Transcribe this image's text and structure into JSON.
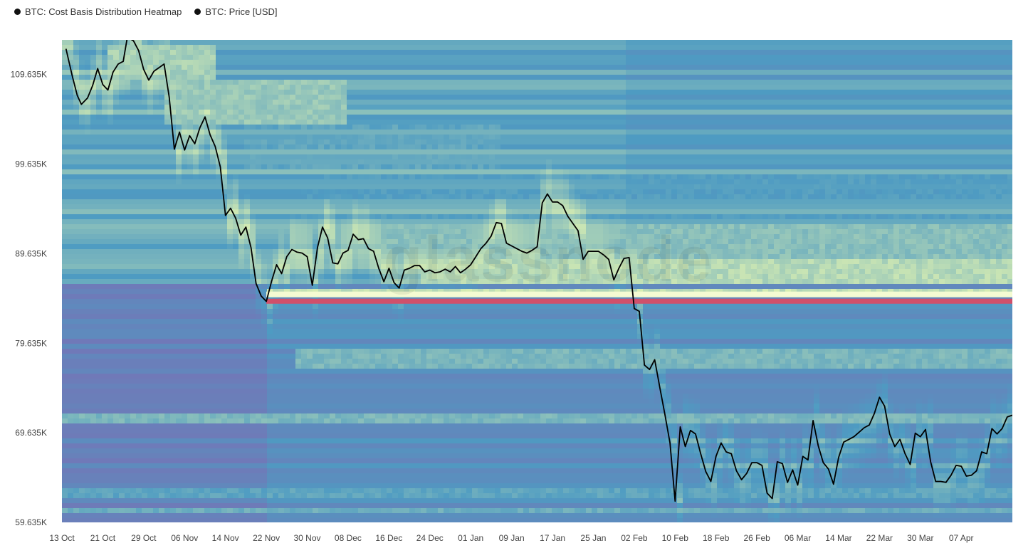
{
  "legend": {
    "items": [
      {
        "label": "BTC: Cost Basis Distribution Heatmap",
        "color": "#111111"
      },
      {
        "label": "BTC: Price [USD]",
        "color": "#111111"
      }
    ]
  },
  "watermark": "glassnode",
  "colors": {
    "heat_low": "#7a6fb5",
    "heat_mid": "#4e9bc2",
    "heat_high": "#e8f7b0",
    "heat_max": "#d0506b",
    "price_line": "#000000"
  },
  "chart_data": {
    "type": "heatmap",
    "y_ticks": [
      "109.635K",
      "99.635K",
      "89.635K",
      "79.635K",
      "69.635K",
      "59.635K"
    ],
    "y_tick_values": [
      109635,
      99635,
      89635,
      79635,
      69635,
      59635
    ],
    "x_ticks": [
      "13 Oct",
      "21 Oct",
      "29 Oct",
      "06 Nov",
      "14 Nov",
      "22 Nov",
      "30 Nov",
      "08 Dec",
      "16 Dec",
      "24 Dec",
      "01 Jan",
      "09 Jan",
      "17 Jan",
      "25 Jan",
      "02 Feb",
      "10 Feb",
      "18 Feb",
      "26 Feb",
      "06 Mar",
      "14 Mar",
      "22 Mar",
      "30 Mar",
      "07 Apr"
    ],
    "ylim": [
      59635,
      113500
    ],
    "xlim_days": [
      0,
      182
    ],
    "highlight_band": {
      "level": 84300,
      "start": "22 Nov",
      "end": "end"
    },
    "series": [
      {
        "name": "BTC: Price [USD]",
        "type": "line",
        "points": [
          [
            0.8,
            112500
          ],
          [
            2,
            109500
          ],
          [
            3,
            107300
          ],
          [
            3.8,
            106300
          ],
          [
            5,
            107000
          ],
          [
            6,
            108400
          ],
          [
            7,
            110300
          ],
          [
            8,
            108500
          ],
          [
            9,
            107900
          ],
          [
            10,
            109900
          ],
          [
            11,
            110800
          ],
          [
            12,
            111100
          ],
          [
            12.8,
            113800
          ],
          [
            14,
            113400
          ],
          [
            15,
            112300
          ],
          [
            16,
            110200
          ],
          [
            17,
            109000
          ],
          [
            18,
            110000
          ],
          [
            19,
            110400
          ],
          [
            20,
            110800
          ],
          [
            21,
            107100
          ],
          [
            22,
            101300
          ],
          [
            23,
            103200
          ],
          [
            24,
            101200
          ],
          [
            25,
            102800
          ],
          [
            26,
            101900
          ],
          [
            27,
            103700
          ],
          [
            28,
            104900
          ],
          [
            29,
            102900
          ],
          [
            30,
            101600
          ],
          [
            31,
            99300
          ],
          [
            32,
            93900
          ],
          [
            33,
            94700
          ],
          [
            34,
            93600
          ],
          [
            35,
            91700
          ],
          [
            36,
            92600
          ],
          [
            37,
            90300
          ],
          [
            38,
            86300
          ],
          [
            39,
            84900
          ],
          [
            40,
            84300
          ],
          [
            41,
            86500
          ],
          [
            42,
            88400
          ],
          [
            43,
            87400
          ],
          [
            44,
            89300
          ],
          [
            45,
            90100
          ],
          [
            46,
            89800
          ],
          [
            47,
            89700
          ],
          [
            48,
            89300
          ],
          [
            49,
            86100
          ],
          [
            50,
            90300
          ],
          [
            51,
            92600
          ],
          [
            52,
            91400
          ],
          [
            53,
            88600
          ],
          [
            54,
            88500
          ],
          [
            55,
            89700
          ],
          [
            56,
            90000
          ],
          [
            57,
            91800
          ],
          [
            58,
            91200
          ],
          [
            59,
            91300
          ],
          [
            60,
            90200
          ],
          [
            61,
            89900
          ],
          [
            62,
            88000
          ],
          [
            63,
            86500
          ],
          [
            64,
            88000
          ],
          [
            65,
            86400
          ],
          [
            66,
            85800
          ],
          [
            67,
            87800
          ],
          [
            68,
            88000
          ],
          [
            69,
            88300
          ],
          [
            70,
            88300
          ],
          [
            71,
            87600
          ],
          [
            72,
            87800
          ],
          [
            73,
            87500
          ],
          [
            74,
            87600
          ],
          [
            75,
            87900
          ],
          [
            76,
            87600
          ],
          [
            77,
            88200
          ],
          [
            78,
            87500
          ],
          [
            79,
            87900
          ],
          [
            80,
            88400
          ],
          [
            81,
            89300
          ],
          [
            82,
            90200
          ],
          [
            83,
            90800
          ],
          [
            84,
            91600
          ],
          [
            85,
            93100
          ],
          [
            86,
            93000
          ],
          [
            87,
            90800
          ],
          [
            88,
            90500
          ],
          [
            89,
            90200
          ],
          [
            90,
            89900
          ],
          [
            91,
            89700
          ],
          [
            92,
            90000
          ],
          [
            93,
            90400
          ],
          [
            94,
            95300
          ],
          [
            95,
            96300
          ],
          [
            96,
            95400
          ],
          [
            97,
            95400
          ],
          [
            98,
            95000
          ],
          [
            99,
            93800
          ],
          [
            100,
            93000
          ],
          [
            101,
            92200
          ],
          [
            102,
            89000
          ],
          [
            103,
            89900
          ],
          [
            104,
            89900
          ],
          [
            105,
            89900
          ],
          [
            106,
            89500
          ],
          [
            107,
            89000
          ],
          [
            108,
            86700
          ],
          [
            109,
            88000
          ],
          [
            110,
            89100
          ],
          [
            111,
            89200
          ],
          [
            112,
            83500
          ],
          [
            113,
            83200
          ],
          [
            114,
            77200
          ],
          [
            115,
            76700
          ],
          [
            116,
            77800
          ],
          [
            117,
            74700
          ],
          [
            118,
            71700
          ],
          [
            119,
            68500
          ],
          [
            120,
            62000
          ],
          [
            121,
            70300
          ],
          [
            122,
            68100
          ],
          [
            123,
            69900
          ],
          [
            124,
            69500
          ],
          [
            125,
            67300
          ],
          [
            126,
            65300
          ],
          [
            127,
            64200
          ],
          [
            128,
            67000
          ],
          [
            129,
            68500
          ],
          [
            130,
            67500
          ],
          [
            131,
            67300
          ],
          [
            132,
            65400
          ],
          [
            133,
            64400
          ],
          [
            134,
            65100
          ],
          [
            135,
            66300
          ],
          [
            136,
            66300
          ],
          [
            137,
            66000
          ],
          [
            138,
            62900
          ],
          [
            139,
            62300
          ],
          [
            140,
            66400
          ],
          [
            141,
            66200
          ],
          [
            142,
            64100
          ],
          [
            143,
            65500
          ],
          [
            144,
            63800
          ],
          [
            145,
            67000
          ],
          [
            146,
            66600
          ],
          [
            147,
            71000
          ],
          [
            148,
            68200
          ],
          [
            149,
            66300
          ],
          [
            150,
            65600
          ],
          [
            151,
            63900
          ],
          [
            152,
            66900
          ],
          [
            153,
            68600
          ],
          [
            154,
            68900
          ],
          [
            155,
            69200
          ],
          [
            156,
            69700
          ],
          [
            157,
            70200
          ],
          [
            158,
            70500
          ],
          [
            159,
            71800
          ],
          [
            160,
            73600
          ],
          [
            161,
            72600
          ],
          [
            162,
            69500
          ],
          [
            163,
            68100
          ],
          [
            164,
            68900
          ],
          [
            165,
            67300
          ],
          [
            166,
            66100
          ],
          [
            167,
            69600
          ],
          [
            168,
            69200
          ],
          [
            169,
            70000
          ],
          [
            170,
            66400
          ],
          [
            171,
            64200
          ],
          [
            172,
            64200
          ],
          [
            173,
            64100
          ],
          [
            174,
            64900
          ],
          [
            175,
            66000
          ],
          [
            176,
            65900
          ],
          [
            177,
            64800
          ],
          [
            178,
            64900
          ],
          [
            179,
            65400
          ],
          [
            180,
            67500
          ],
          [
            181,
            67300
          ],
          [
            182,
            70100
          ],
          [
            183,
            69500
          ],
          [
            184,
            70100
          ],
          [
            185,
            71400
          ],
          [
            186,
            71600
          ]
        ]
      },
      {
        "name": "BTC: Cost Basis Distribution Heatmap",
        "type": "heatmap",
        "bands": [
          {
            "y": [
              109000,
              113000
            ],
            "start": 8,
            "end": 30,
            "intensity": 0.85
          },
          {
            "y": [
              104000,
              109000
            ],
            "start": 20,
            "end": 55,
            "intensity": 0.8
          },
          {
            "y": [
              99000,
              104000
            ],
            "start": 35,
            "end": 85,
            "intensity": 0.6
          },
          {
            "y": [
              93000,
              99000
            ],
            "start": 45,
            "end": 190,
            "intensity": 0.55
          },
          {
            "y": [
              89000,
              93000
            ],
            "start": 55,
            "end": 190,
            "intensity": 0.75
          },
          {
            "y": [
              86500,
              89000
            ],
            "start": 70,
            "end": 190,
            "intensity": 0.9
          },
          {
            "y": [
              84900,
              85800
            ],
            "start": 40,
            "end": 190,
            "intensity": 0.95
          },
          {
            "y": [
              77000,
              79000
            ],
            "start": 45,
            "end": 190,
            "intensity": 0.7
          },
          {
            "y": [
              70800,
              71800
            ],
            "start": 0,
            "end": 190,
            "intensity": 0.7
          },
          {
            "y": [
              62500,
              63500
            ],
            "start": 0,
            "end": 190,
            "intensity": 0.6
          },
          {
            "y": [
              60500,
              61200
            ],
            "start": 0,
            "end": 190,
            "intensity": 0.65
          }
        ]
      }
    ]
  }
}
